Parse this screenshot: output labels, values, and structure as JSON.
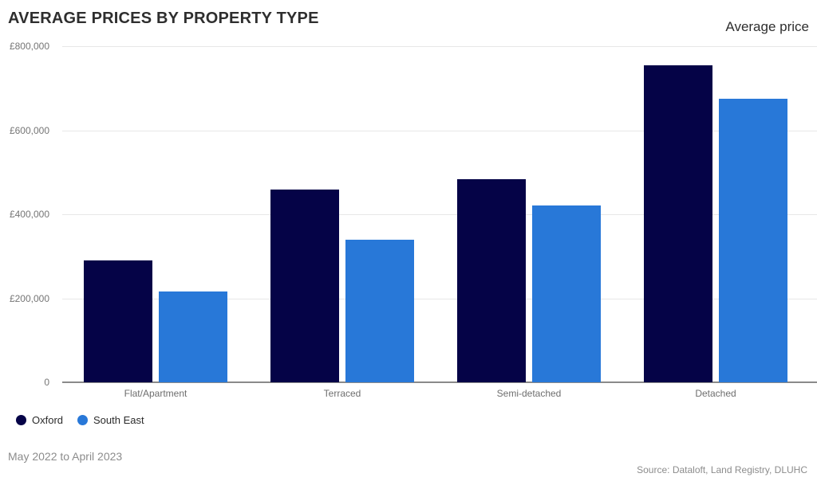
{
  "header": {
    "title": "AVERAGE PRICES BY PROPERTY TYPE",
    "right_label": "Average price"
  },
  "chart_data": {
    "type": "bar",
    "title": "AVERAGE PRICES BY PROPERTY TYPE",
    "ylabel": "Average price",
    "categories": [
      "Flat/Apartment",
      "Terraced",
      "Semi-detached",
      "Detached"
    ],
    "series": [
      {
        "name": "Oxford",
        "color": "#050347",
        "values": [
          290000,
          459000,
          484000,
          755000
        ]
      },
      {
        "name": "South East",
        "color": "#2878d8",
        "values": [
          217000,
          340000,
          420000,
          675000
        ]
      }
    ],
    "ylim": [
      0,
      800000
    ],
    "y_ticks": [
      {
        "value": 800000,
        "label": "£800,000"
      },
      {
        "value": 600000,
        "label": "£600,000"
      },
      {
        "value": 400000,
        "label": "£400,000"
      },
      {
        "value": 200000,
        "label": "£200,000"
      },
      {
        "value": 0,
        "label": "0"
      }
    ],
    "grid": true,
    "legend_position": "bottom-left"
  },
  "footer": {
    "date_range": "May 2022 to April 2023",
    "source": "Source: Dataloft, Land Registry, DLUHC"
  },
  "colors": {
    "oxford": "#050347",
    "south_east": "#2878d8",
    "gridline": "#e7e7e7",
    "axis": "#8a8a8a",
    "title_text": "#2e2e2e",
    "tick_text": "#757575",
    "category_text": "#6e6e6e",
    "footer_text": "#8c8c8c"
  }
}
